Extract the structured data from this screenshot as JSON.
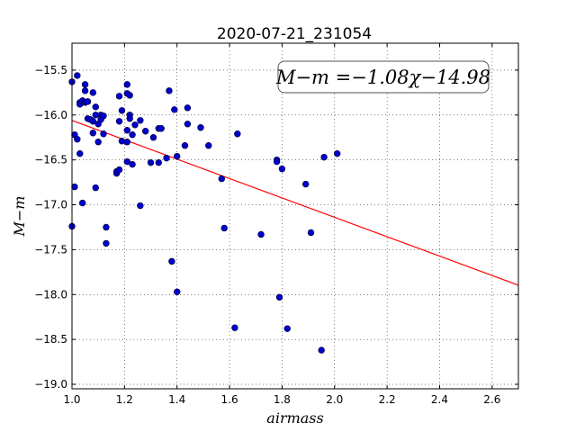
{
  "chart_data": {
    "type": "scatter",
    "title": "2020-07-21_231054",
    "xlabel": "airmass",
    "ylabel": "M−m",
    "xlim": [
      1.0,
      2.7
    ],
    "ylim": [
      -19.05,
      -15.2
    ],
    "xticks": [
      "1.0",
      "1.2",
      "1.4",
      "1.6",
      "1.8",
      "2.0",
      "2.2",
      "2.4",
      "2.6"
    ],
    "yticks": [
      "-15.5",
      "-16.0",
      "-16.5",
      "-17.0",
      "-17.5",
      "-18.0",
      "-18.5",
      "-19.0"
    ],
    "grid": true,
    "annotation": "M−m =−1.08χ−14.98",
    "fit": {
      "slope": -1.08,
      "intercept": -14.98,
      "color": "#ff0000"
    },
    "point_color": "#0000cc",
    "points": [
      [
        1.0,
        -15.63
      ],
      [
        1.0,
        -17.24
      ],
      [
        1.01,
        -16.22
      ],
      [
        1.01,
        -16.8
      ],
      [
        1.02,
        -16.27
      ],
      [
        1.02,
        -15.56
      ],
      [
        1.03,
        -15.86
      ],
      [
        1.03,
        -15.88
      ],
      [
        1.03,
        -16.43
      ],
      [
        1.04,
        -15.84
      ],
      [
        1.04,
        -16.98
      ],
      [
        1.05,
        -15.66
      ],
      [
        1.05,
        -15.73
      ],
      [
        1.05,
        -15.86
      ],
      [
        1.06,
        -16.04
      ],
      [
        1.06,
        -15.85
      ],
      [
        1.07,
        -16.05
      ],
      [
        1.08,
        -15.75
      ],
      [
        1.08,
        -16.07
      ],
      [
        1.08,
        -16.2
      ],
      [
        1.09,
        -15.91
      ],
      [
        1.09,
        -16.0
      ],
      [
        1.09,
        -16.81
      ],
      [
        1.1,
        -16.3
      ],
      [
        1.1,
        -16.1
      ],
      [
        1.11,
        -16.0
      ],
      [
        1.11,
        -16.05
      ],
      [
        1.12,
        -16.01
      ],
      [
        1.12,
        -16.21
      ],
      [
        1.13,
        -17.43
      ],
      [
        1.13,
        -17.25
      ],
      [
        1.17,
        -16.65
      ],
      [
        1.17,
        -16.63
      ],
      [
        1.18,
        -15.79
      ],
      [
        1.18,
        -16.07
      ],
      [
        1.18,
        -16.61
      ],
      [
        1.19,
        -15.95
      ],
      [
        1.19,
        -16.29
      ],
      [
        1.21,
        -15.66
      ],
      [
        1.21,
        -15.76
      ],
      [
        1.21,
        -16.17
      ],
      [
        1.21,
        -16.3
      ],
      [
        1.21,
        -16.52
      ],
      [
        1.22,
        -15.78
      ],
      [
        1.22,
        -16.0
      ],
      [
        1.22,
        -16.04
      ],
      [
        1.23,
        -16.22
      ],
      [
        1.23,
        -16.55
      ],
      [
        1.24,
        -16.11
      ],
      [
        1.26,
        -16.06
      ],
      [
        1.26,
        -17.01
      ],
      [
        1.28,
        -16.18
      ],
      [
        1.3,
        -16.53
      ],
      [
        1.31,
        -16.25
      ],
      [
        1.33,
        -16.15
      ],
      [
        1.33,
        -16.53
      ],
      [
        1.34,
        -16.15
      ],
      [
        1.36,
        -16.48
      ],
      [
        1.37,
        -15.73
      ],
      [
        1.38,
        -17.63
      ],
      [
        1.39,
        -15.94
      ],
      [
        1.4,
        -16.46
      ],
      [
        1.4,
        -17.97
      ],
      [
        1.43,
        -16.34
      ],
      [
        1.44,
        -16.1
      ],
      [
        1.44,
        -15.92
      ],
      [
        1.49,
        -16.14
      ],
      [
        1.52,
        -16.34
      ],
      [
        1.57,
        -16.71
      ],
      [
        1.58,
        -17.26
      ],
      [
        1.62,
        -18.37
      ],
      [
        1.63,
        -16.21
      ],
      [
        1.72,
        -17.33
      ],
      [
        1.78,
        -16.5
      ],
      [
        1.78,
        -16.52
      ],
      [
        1.79,
        -18.03
      ],
      [
        1.8,
        -16.6
      ],
      [
        1.82,
        -18.38
      ],
      [
        1.89,
        -16.77
      ],
      [
        1.91,
        -17.31
      ],
      [
        1.95,
        -18.62
      ],
      [
        1.96,
        -16.47
      ],
      [
        2.01,
        -16.43
      ]
    ]
  }
}
